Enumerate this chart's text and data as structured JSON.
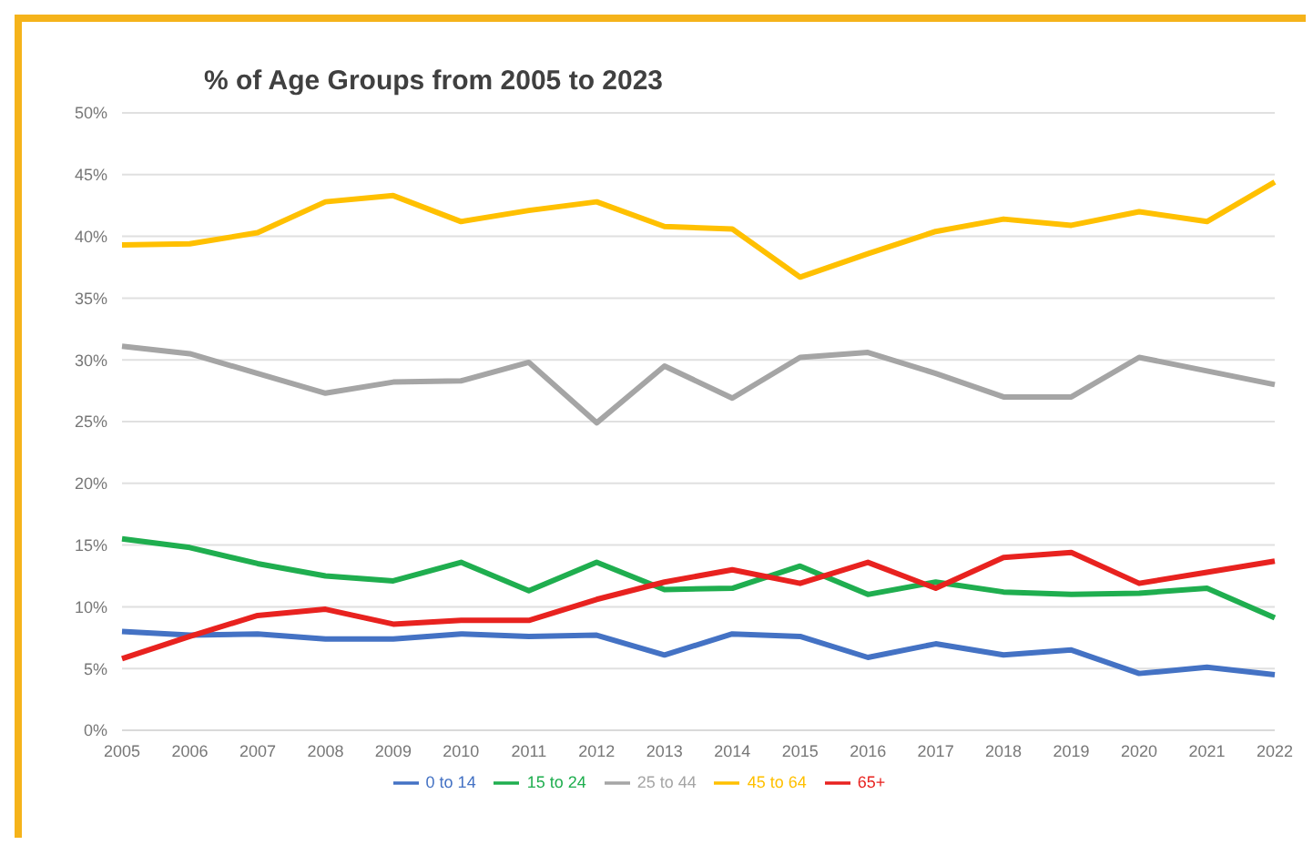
{
  "chart_data": {
    "type": "line",
    "title": "% of Age Groups from 2005 to 2023",
    "categories": [
      "2005",
      "2006",
      "2007",
      "2008",
      "2009",
      "2010",
      "2011",
      "2012",
      "2013",
      "2014",
      "2015",
      "2016",
      "2017",
      "2018",
      "2019",
      "2020",
      "2021",
      "2022"
    ],
    "series": [
      {
        "name": "0 to 14",
        "color": "#4472c4",
        "values": [
          8.0,
          7.7,
          7.8,
          7.4,
          7.4,
          7.8,
          7.6,
          7.7,
          6.1,
          7.8,
          7.6,
          5.9,
          7.0,
          6.1,
          6.5,
          4.6,
          5.1,
          4.5
        ]
      },
      {
        "name": "15 to 24",
        "color": "#1fae4f",
        "values": [
          15.5,
          14.8,
          13.5,
          12.5,
          12.1,
          13.6,
          11.3,
          13.6,
          11.4,
          11.5,
          13.3,
          11.0,
          12.0,
          11.2,
          11.0,
          11.1,
          11.5,
          9.1
        ]
      },
      {
        "name": "25 to 44",
        "color": "#a5a5a5",
        "values": [
          31.1,
          30.5,
          28.9,
          27.3,
          28.2,
          28.3,
          29.8,
          24.9,
          29.5,
          26.9,
          30.2,
          30.6,
          28.9,
          27.0,
          27.0,
          30.2,
          29.1,
          28.0
        ]
      },
      {
        "name": "45 to 64",
        "color": "#ffc000",
        "values": [
          39.3,
          39.4,
          40.3,
          42.8,
          43.3,
          41.2,
          42.1,
          42.8,
          40.8,
          40.6,
          36.7,
          38.6,
          40.4,
          41.4,
          40.9,
          42.0,
          41.2,
          44.4
        ]
      },
      {
        "name": "65+",
        "color": "#e8221f",
        "values": [
          5.8,
          7.6,
          9.3,
          9.8,
          8.6,
          8.9,
          8.9,
          10.6,
          12.0,
          13.0,
          11.9,
          13.6,
          11.5,
          14.0,
          14.4,
          11.9,
          12.8,
          13.7
        ]
      }
    ],
    "ylim": [
      0,
      50
    ],
    "yticks": [
      {
        "value": 0,
        "label": "0%"
      },
      {
        "value": 5,
        "label": "5%"
      },
      {
        "value": 10,
        "label": "10%"
      },
      {
        "value": 15,
        "label": "15%"
      },
      {
        "value": 20,
        "label": "20%"
      },
      {
        "value": 25,
        "label": "25%"
      },
      {
        "value": 30,
        "label": "30%"
      },
      {
        "value": 35,
        "label": "35%"
      },
      {
        "value": 40,
        "label": "40%"
      },
      {
        "value": 45,
        "label": "45%"
      },
      {
        "value": 50,
        "label": "50%"
      }
    ],
    "grid": "y",
    "legend": "bottom",
    "marker": "none",
    "line_style": "solid"
  }
}
